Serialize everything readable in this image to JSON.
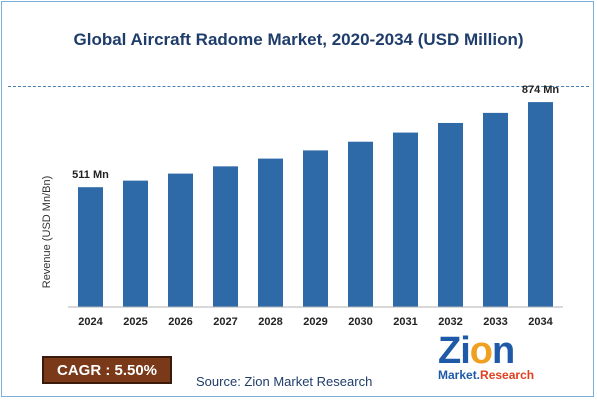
{
  "chart_data": {
    "type": "bar",
    "title": "Global Aircraft Radome Market, 2020-2034 (USD Million)",
    "xlabel": "",
    "ylabel": "Revenue (USD Mn/Bn)",
    "categories": [
      "2024",
      "2025",
      "2026",
      "2027",
      "2028",
      "2029",
      "2030",
      "2031",
      "2032",
      "2033",
      "2034"
    ],
    "values": [
      511,
      539,
      569,
      600,
      633,
      668,
      705,
      744,
      785,
      828,
      874
    ],
    "ylim": [
      0,
      900
    ],
    "data_labels": [
      {
        "index": 0,
        "text": "511 Mn"
      },
      {
        "index": 10,
        "text": "874 Mn"
      }
    ],
    "bar_color": "#2e6aa8",
    "grid": false
  },
  "cagr": {
    "label": "CAGR : 5.50%"
  },
  "source": {
    "text": "Source: Zion Market Research"
  },
  "logo": {
    "word": "Zion",
    "sub": "Market.Research"
  },
  "colors": {
    "title": "#1f3d6b",
    "cagr_bg": "#7a3a1a",
    "border": "#7ab0d8"
  }
}
